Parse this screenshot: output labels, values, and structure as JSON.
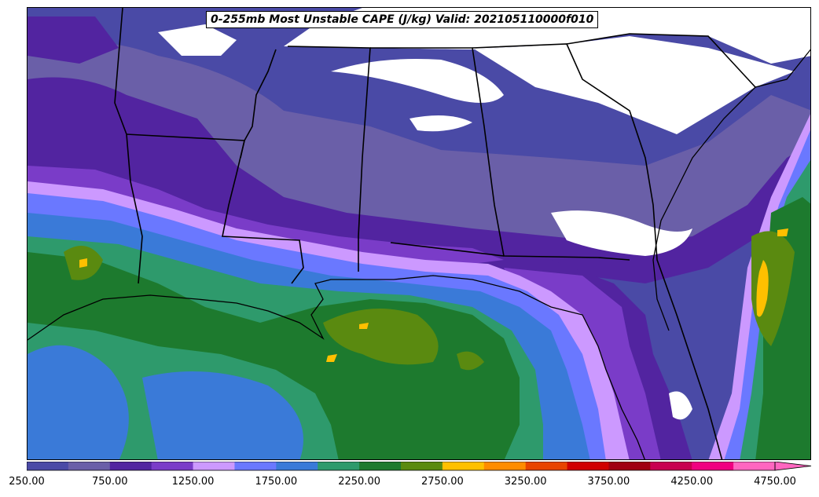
{
  "map": {
    "title": "0-255mb Most Unstable CAPE (J/kg) Valid: 202105110000f010",
    "colorbar": {
      "colors": [
        "#4a4aa6",
        "#6a5fa8",
        "#5224a0",
        "#7a3cc8",
        "#cc99ff",
        "#6a78ff",
        "#3a7ad8",
        "#2e9a6c",
        "#1d7a2e",
        "#5a8a10",
        "#ffc000",
        "#ff8c00",
        "#e84400",
        "#d00000",
        "#a00010",
        "#c80050",
        "#f00080",
        "#ff66c0"
      ],
      "tick_labels": [
        "250.00",
        "750.00",
        "1250.00",
        "1750.00",
        "2250.00",
        "2750.00",
        "3250.00",
        "3750.00",
        "4250.00",
        "4750.00"
      ]
    },
    "layers": {
      "base_fill": "#4a4aa6",
      "white_fill": "#ffffff",
      "lavender": "#cc99ff",
      "blue": "#6a78ff",
      "sky_blue": "#3a7ad8",
      "sea_green": "#2e9a6c",
      "dark_green": "#1d7a2e",
      "olive": "#5a8a10",
      "gold": "#ffc000"
    }
  }
}
